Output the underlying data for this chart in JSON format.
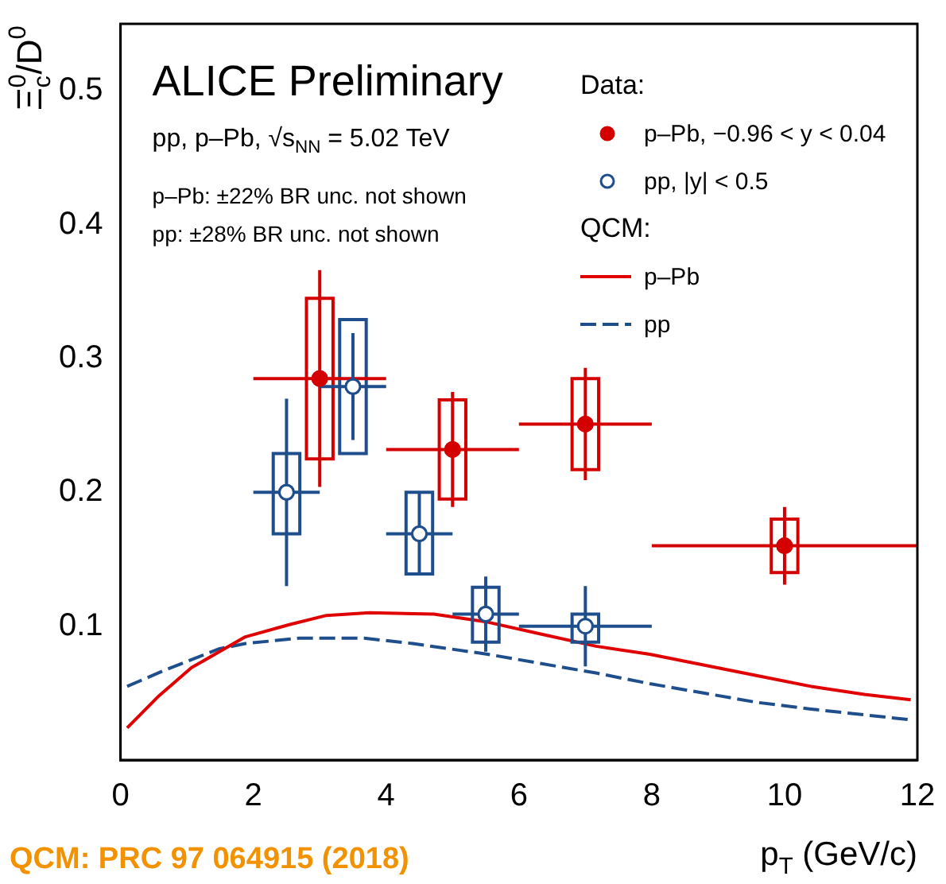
{
  "chart_data": {
    "type": "scatter",
    "title": "ALICE Preliminary",
    "subtitle": "pp, p–Pb, √s$_{NN}$ = 5.02 TeV",
    "xlabel": "p$_{T}$ (GeV/c)",
    "ylabel": "Ξ$_{c}$$^{0}$/D$^{0}$",
    "annotations": [
      "p–Pb: ±22% BR unc. not shown",
      "pp: ±28% BR unc. not shown",
      "Data:",
      "QCM:",
      "QCM: PRC 97 064915 (2018)"
    ],
    "xlim": [
      0,
      12
    ],
    "xticks": [
      0,
      2,
      4,
      6,
      8,
      10,
      12
    ],
    "ylim": [
      0,
      0.55
    ],
    "yticks": [
      0.1,
      0.2,
      0.3,
      0.4,
      0.5
    ],
    "grid": false,
    "legend": "top right",
    "series": [
      {
        "name": "p–Pb, −0.96 < y < 0.04",
        "color": "#d40000",
        "marker": "circle",
        "x": [
          3,
          5,
          7,
          10
        ],
        "values": [
          0.285,
          0.232,
          0.251,
          0.16
        ],
        "errors": [
          0.081,
          0.043,
          0.042,
          0.029
        ],
        "xerrors": [
          1,
          1,
          1,
          2
        ]
      },
      {
        "type": "bar",
        "color": "#d40000",
        "x": [
          3,
          5,
          7,
          10
        ],
        "base": [
          0.225,
          0.195,
          0.217,
          0.14
        ],
        "values": [
          0.12,
          0.074,
          0.068,
          0.04
        ]
      },
      {
        "name": "pp, |y| < 0.5",
        "color": "#1f4e8c",
        "marker": "circle",
        "x": [
          2.5,
          3.5,
          4.5,
          5.5,
          7
        ],
        "values": [
          0.2,
          0.279,
          0.169,
          0.109,
          0.1
        ],
        "errors": [
          0.07,
          0.04,
          0.03,
          0.028,
          0.03
        ],
        "xerrors": [
          0.5,
          0.5,
          0.5,
          0.5,
          1
        ]
      },
      {
        "type": "bar",
        "color": "#1f4e8c",
        "x": [
          2.5,
          3.5,
          4.5,
          5.5,
          7
        ],
        "base": [
          0.169,
          0.229,
          0.139,
          0.088,
          0.088
        ],
        "values": [
          0.06,
          0.1,
          0.061,
          0.041,
          0.021
        ]
      },
      {
        "name": "p–Pb",
        "type": "line",
        "color": "#e00000",
        "line_style": "solid",
        "marker": "none",
        "x": [
          0.1,
          0.58,
          1.07,
          1.88,
          2.53,
          3.1,
          3.75,
          4.72,
          5.53,
          6.34,
          7.16,
          7.97,
          8.78,
          9.59,
          10.4,
          11.2,
          11.9
        ],
        "values": [
          0.024,
          0.048,
          0.069,
          0.092,
          0.101,
          0.108,
          0.11,
          0.109,
          0.103,
          0.094,
          0.085,
          0.079,
          0.071,
          0.063,
          0.055,
          0.049,
          0.045
        ]
      },
      {
        "name": "pp",
        "type": "line",
        "color": "#1f4e8c",
        "line_style": "dashed",
        "marker": "none",
        "x": [
          0.1,
          0.66,
          1.48,
          1.88,
          2.69,
          3.67,
          4.4,
          5.53,
          6.34,
          7.16,
          7.97,
          8.78,
          9.59,
          10.4,
          11.9
        ],
        "values": [
          0.055,
          0.067,
          0.083,
          0.087,
          0.091,
          0.091,
          0.087,
          0.079,
          0.072,
          0.065,
          0.057,
          0.05,
          0.043,
          0.038,
          0.03
        ]
      }
    ]
  }
}
